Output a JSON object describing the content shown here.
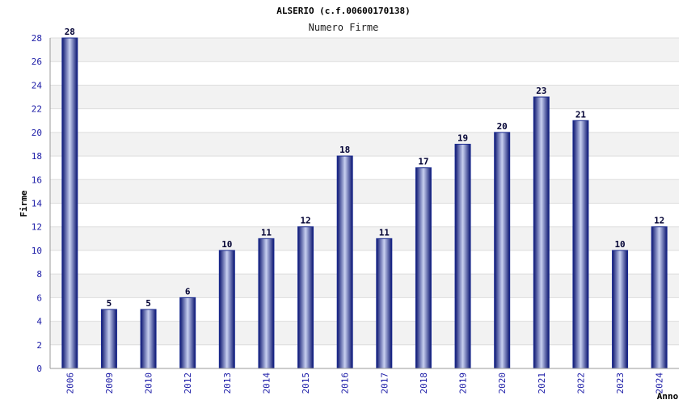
{
  "chart_data": {
    "type": "bar",
    "title": "ALSERIO (c.f.00600170138)",
    "subtitle": "Numero Firme",
    "xlabel": "Anno",
    "ylabel": "Firme",
    "categories": [
      "2006",
      "2009",
      "2010",
      "2012",
      "2013",
      "2014",
      "2015",
      "2016",
      "2017",
      "2018",
      "2019",
      "2020",
      "2021",
      "2022",
      "2023",
      "2024"
    ],
    "values": [
      28,
      5,
      5,
      6,
      10,
      11,
      12,
      18,
      11,
      17,
      19,
      20,
      23,
      21,
      10,
      12
    ],
    "ylim": [
      0,
      28
    ],
    "yticks": [
      0,
      2,
      4,
      6,
      8,
      10,
      12,
      14,
      16,
      18,
      20,
      22,
      24,
      26,
      28
    ],
    "grid": true,
    "bar_color": "#1a2a8f",
    "band_color": "#f2f2f2"
  }
}
